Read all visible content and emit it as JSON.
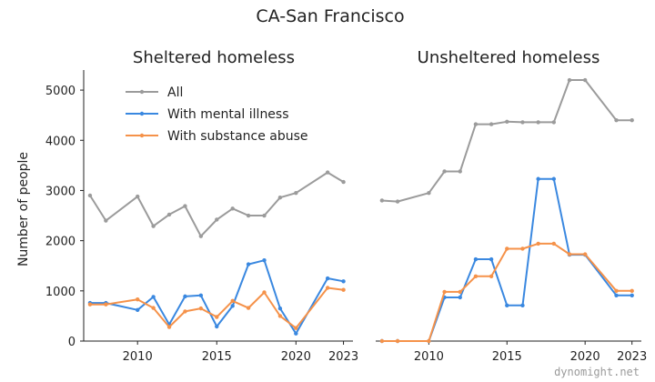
{
  "chart_data": {
    "type": "line",
    "title": "CA-San Francisco",
    "ylabel": "Number of people",
    "watermark": "dynomight.net",
    "ylim": [
      0,
      5400
    ],
    "xlim": [
      2006.6,
      2023.6
    ],
    "xticks": [
      2010,
      2015,
      2020,
      2023
    ],
    "yticks": [
      0,
      1000,
      2000,
      3000,
      4000,
      5000
    ],
    "legend": {
      "placement": "top-left",
      "entries": [
        {
          "name": "All",
          "color": "#9b9b9b"
        },
        {
          "name": "With mental illness",
          "color": "#3a88e0"
        },
        {
          "name": "With substance abuse",
          "color": "#f5924a"
        }
      ]
    },
    "panels": [
      {
        "subtitle": "Sheltered homeless",
        "series": [
          {
            "name": "All",
            "color": "#9b9b9b",
            "x": [
              2007,
              2008,
              2010,
              2011,
              2012,
              2013,
              2014,
              2015,
              2016,
              2017,
              2018,
              2019,
              2020,
              2022,
              2023
            ],
            "y": [
              2900,
              2400,
              2880,
              2290,
              2520,
              2690,
              2090,
              2420,
              2640,
              2500,
              2500,
              2860,
              2950,
              3360,
              3170
            ]
          },
          {
            "name": "With mental illness",
            "color": "#3a88e0",
            "x": [
              2007,
              2008,
              2010,
              2011,
              2012,
              2013,
              2014,
              2015,
              2016,
              2017,
              2018,
              2019,
              2020,
              2022,
              2023
            ],
            "y": [
              760,
              760,
              620,
              880,
              330,
              890,
              910,
              290,
              700,
              1530,
              1610,
              650,
              150,
              1250,
              1190
            ]
          },
          {
            "name": "With substance abuse",
            "color": "#f5924a",
            "x": [
              2007,
              2008,
              2010,
              2011,
              2012,
              2013,
              2014,
              2015,
              2016,
              2017,
              2018,
              2019,
              2020,
              2022,
              2023
            ],
            "y": [
              730,
              730,
              830,
              660,
              280,
              590,
              650,
              480,
              800,
              660,
              970,
              500,
              260,
              1060,
              1020
            ]
          }
        ]
      },
      {
        "subtitle": "Unsheltered homeless",
        "series": [
          {
            "name": "All",
            "color": "#9b9b9b",
            "x": [
              2007,
              2008,
              2010,
              2011,
              2012,
              2013,
              2014,
              2015,
              2016,
              2017,
              2018,
              2019,
              2020,
              2022,
              2023
            ],
            "y": [
              2800,
              2780,
              2950,
              3380,
              3380,
              4320,
              4320,
              4370,
              4360,
              4360,
              4360,
              5200,
              5200,
              4400,
              4400
            ]
          },
          {
            "name": "With mental illness",
            "color": "#3a88e0",
            "x": [
              2007,
              2008,
              2010,
              2011,
              2012,
              2013,
              2014,
              2015,
              2016,
              2017,
              2018,
              2019,
              2020,
              2022,
              2023
            ],
            "y": [
              0,
              0,
              0,
              870,
              870,
              1630,
              1630,
              710,
              710,
              3230,
              3230,
              1720,
              1720,
              910,
              910
            ]
          },
          {
            "name": "With substance abuse",
            "color": "#f5924a",
            "x": [
              2007,
              2008,
              2010,
              2011,
              2012,
              2013,
              2014,
              2015,
              2016,
              2017,
              2018,
              2019,
              2020,
              2022,
              2023
            ],
            "y": [
              0,
              0,
              0,
              980,
              980,
              1290,
              1290,
              1840,
              1840,
              1940,
              1940,
              1730,
              1730,
              1000,
              1000
            ]
          }
        ]
      }
    ]
  }
}
